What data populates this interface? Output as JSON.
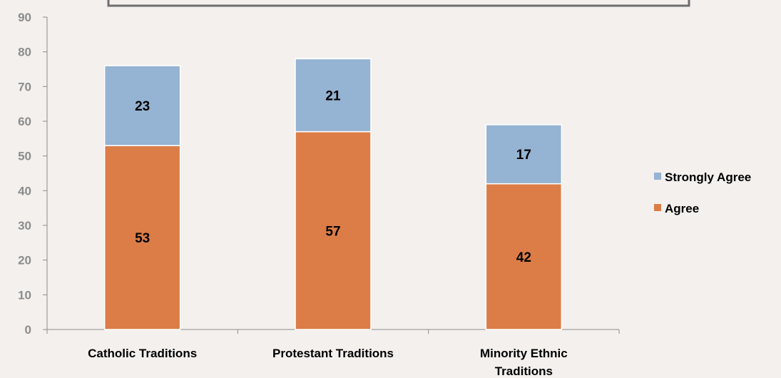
{
  "chart_data": {
    "type": "bar",
    "stacked": true,
    "title": "",
    "xlabel": "",
    "ylabel": "",
    "ylim": [
      0,
      90
    ],
    "ytick_step": 10,
    "grid": false,
    "legend_position": "right",
    "categories": [
      "Catholic Traditions",
      "Protestant Traditions",
      "Minority Ethnic Traditions"
    ],
    "category_lines": [
      [
        "Catholic Traditions"
      ],
      [
        "Protestant Traditions"
      ],
      [
        "Minority Ethnic",
        "Traditions"
      ]
    ],
    "series": [
      {
        "name": "Agree",
        "values": [
          53,
          57,
          42
        ],
        "color": "#dc7d47"
      },
      {
        "name": "Strongly Agree",
        "values": [
          23,
          21,
          17
        ],
        "color": "#95b3d2"
      }
    ],
    "legend_order": [
      "Strongly Agree",
      "Agree"
    ]
  }
}
